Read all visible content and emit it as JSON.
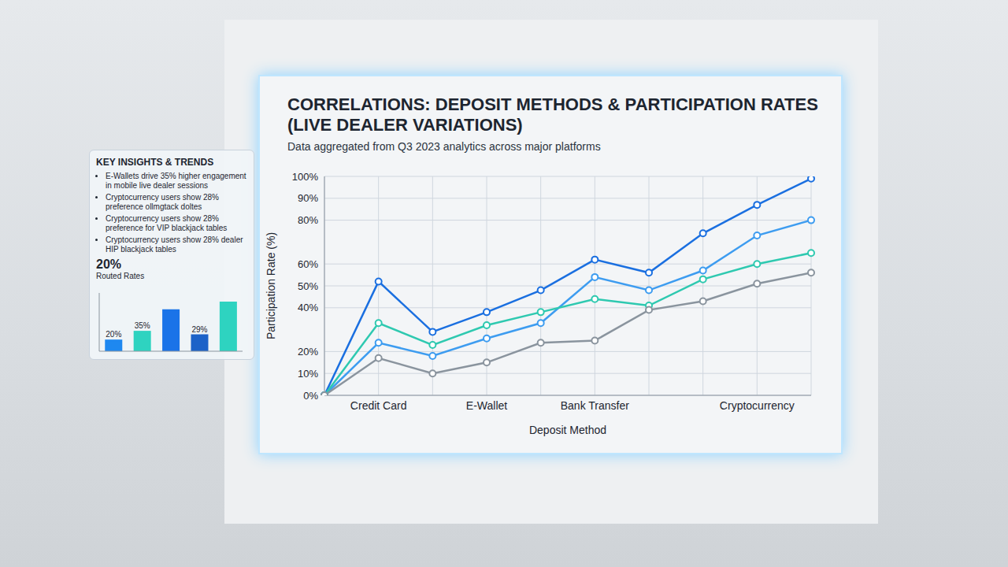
{
  "chart_data": [
    {
      "type": "line",
      "title": "CORRELATIONS: DEPOSIT METHODS & PARTICIPATION RATES (LIVE DEALER VARIATIONS)",
      "subtitle": "Data aggregated from Q3 2023 analytics across major platforms",
      "xlabel": "Deposit Method",
      "ylabel": "Participation Rate (%)",
      "categories": [
        null,
        "Credit Card",
        null,
        "E-Wallet",
        null,
        "Bank Transfer",
        null,
        null,
        "Cryptocurrency",
        null
      ],
      "series": [
        {
          "color": "#1a6fe0",
          "marker": "circle",
          "values": [
            0,
            52,
            29,
            38,
            48,
            62,
            56,
            74,
            87,
            99
          ]
        },
        {
          "color": "#3d9cf0",
          "marker": "circle",
          "values": [
            0,
            24,
            18,
            26,
            33,
            54,
            48,
            57,
            73,
            80
          ]
        },
        {
          "color": "#2ec9b0",
          "marker": "circle",
          "values": [
            0,
            33,
            23,
            32,
            38,
            44,
            41,
            53,
            60,
            65
          ]
        },
        {
          "color": "#8a949e",
          "marker": "circle",
          "values": [
            0,
            17,
            10,
            15,
            24,
            25,
            39,
            43,
            51,
            56
          ]
        }
      ],
      "ylim": [
        0,
        100
      ],
      "yticks": [
        {
          "value": 0,
          "label": "0%"
        },
        {
          "value": 10,
          "label": "10%"
        },
        {
          "value": 20,
          "label": "20%"
        },
        {
          "value": 40,
          "label": "40%"
        },
        {
          "value": 50,
          "label": "50%"
        },
        {
          "value": 60,
          "label": "60%"
        },
        {
          "value": 80,
          "label": "80%"
        },
        {
          "value": 90,
          "label": "90%"
        },
        {
          "value": 100,
          "label": "100%"
        }
      ],
      "grid": true
    },
    {
      "type": "bar",
      "title": "KEY INSIGHTS & TRENDS",
      "annotations": {
        "bullets": [
          "E-Wallets drive 35% higher engagement in mobile live dealer sessions",
          "Cryptocurrency users show 28% preference ollmgtack doltes",
          "Cryptocurrency users show 28% preference for VIP blackjack tables",
          "Cryptocurrency users show 28% dealer HIP blackjack tables"
        ],
        "headline": "20%",
        "caption": "Routed Rates"
      },
      "categories": [
        null,
        null,
        null,
        null,
        null
      ],
      "values": [
        20,
        35,
        72,
        29,
        85
      ],
      "value_labels": [
        "20%",
        "35%",
        null,
        "29%",
        null
      ],
      "colors": [
        "#1e88f0",
        "#2ed3c0",
        "#1a73e8",
        "#1c62c8",
        "#2ed3c0"
      ],
      "ylim": [
        0,
        100
      ],
      "data_labels": true,
      "tick_labels": false
    }
  ]
}
